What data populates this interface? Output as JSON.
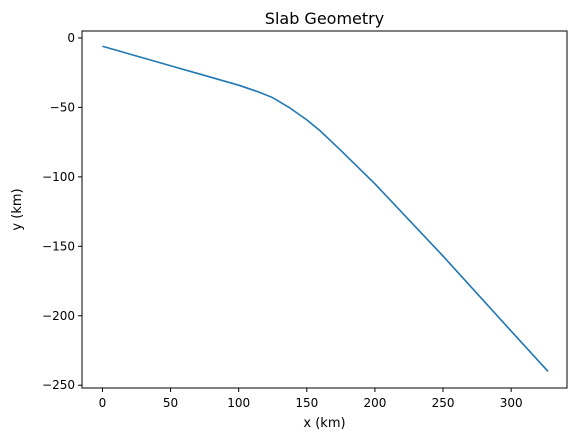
{
  "chart_data": {
    "type": "line",
    "title": "Slab Geometry",
    "xlabel": "x (km)",
    "ylabel": "y (km)",
    "xlim": [
      -15,
      341
    ],
    "ylim": [
      -252,
      5
    ],
    "xticks": [
      0,
      50,
      100,
      150,
      200,
      250,
      300
    ],
    "yticks": [
      0,
      -50,
      -100,
      -150,
      -200,
      -250
    ],
    "xtick_labels": [
      "0",
      "50",
      "100",
      "150",
      "200",
      "250",
      "300"
    ],
    "ytick_labels": [
      "0",
      "−50",
      "−100",
      "−150",
      "−200",
      "−250"
    ],
    "grid": false,
    "line_color": "#1f77b4",
    "series": [
      {
        "x": [
          0,
          25,
          50,
          75,
          100,
          115,
          125,
          137,
          150,
          160,
          175,
          200,
          225,
          250,
          275,
          300,
          327
        ],
        "y": [
          -6,
          -13,
          -20,
          -27,
          -34,
          -39,
          -43,
          -50,
          -59,
          -67,
          -81,
          -105,
          -131,
          -157,
          -184,
          -211,
          -240
        ]
      }
    ]
  }
}
